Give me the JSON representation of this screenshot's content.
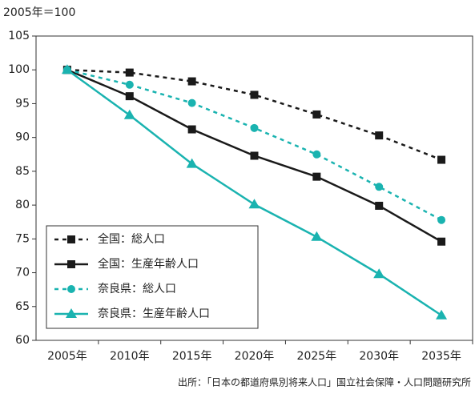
{
  "chart_data": {
    "type": "line",
    "y_label": "2005年＝100",
    "source": "出所：「日本の都道府県別将来人口」国立社会保障・人口問題研究所",
    "categories": [
      "2005年",
      "2010年",
      "2015年",
      "2020年",
      "2025年",
      "2030年",
      "2035年"
    ],
    "ylim": [
      60,
      105
    ],
    "yticks": [
      60,
      65,
      70,
      75,
      80,
      85,
      90,
      95,
      100,
      105
    ],
    "legend": "lower left",
    "series": [
      {
        "name": "全国：総人口",
        "color": "#1a1a1a",
        "linestyle": "dashed",
        "marker": "square",
        "values": [
          100,
          99.6,
          98.3,
          96.3,
          93.4,
          90.3,
          86.7
        ]
      },
      {
        "name": "全国：生産年齢人口",
        "color": "#1a1a1a",
        "linestyle": "solid",
        "marker": "square",
        "values": [
          100,
          96.1,
          91.2,
          87.3,
          84.2,
          79.9,
          74.6
        ]
      },
      {
        "name": "奈良県：総人口",
        "color": "#1ab3b0",
        "linestyle": "dashed",
        "marker": "circle",
        "values": [
          100,
          97.8,
          95.1,
          91.4,
          87.5,
          82.7,
          77.8
        ]
      },
      {
        "name": "奈良県：生産年齢人口",
        "color": "#1ab3b0",
        "linestyle": "solid",
        "marker": "triangle",
        "values": [
          100,
          93.3,
          86.1,
          80.1,
          75.3,
          69.8,
          63.7
        ]
      }
    ]
  }
}
